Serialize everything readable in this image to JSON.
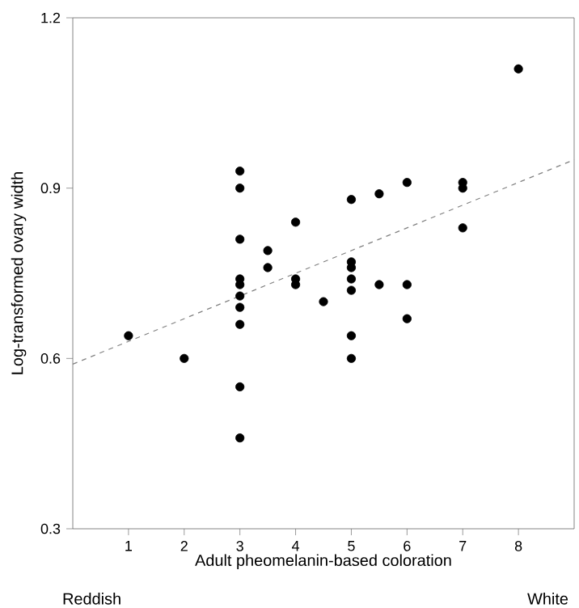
{
  "chart_data": {
    "type": "scatter",
    "xlabel": "Adult pheomelanin-based coloration",
    "ylabel": "Log-transformed ovary width",
    "annotations": [
      "Reddish",
      "White"
    ],
    "xlim": [
      0,
      9
    ],
    "ylim": [
      0.3,
      1.2
    ],
    "xticks": [
      1,
      2,
      3,
      4,
      5,
      6,
      7,
      8
    ],
    "yticks": [
      0.3,
      0.6,
      0.9,
      1.2
    ],
    "series": [
      {
        "color": "#000000",
        "x": [
          1,
          2,
          3,
          3,
          3,
          3,
          3,
          3,
          3,
          3,
          3,
          3,
          3.5,
          3.5,
          4,
          4,
          4,
          4.5,
          5,
          5,
          5,
          5,
          5,
          5,
          5,
          5.5,
          5.5,
          6,
          6,
          6,
          7,
          7,
          7,
          8
        ],
        "values": [
          0.64,
          0.6,
          0.93,
          0.9,
          0.81,
          0.74,
          0.73,
          0.71,
          0.69,
          0.66,
          0.55,
          0.46,
          0.79,
          0.76,
          0.84,
          0.74,
          0.73,
          0.7,
          0.88,
          0.77,
          0.76,
          0.74,
          0.72,
          0.64,
          0.6,
          0.89,
          0.73,
          0.91,
          0.73,
          0.67,
          0.91,
          0.9,
          0.83,
          1.11
        ]
      },
      {
        "type": "line",
        "marker": "none",
        "color": "#808080",
        "line_style": "dashed",
        "x": [
          0,
          9
        ],
        "values": [
          0.59,
          0.95
        ]
      }
    ]
  }
}
